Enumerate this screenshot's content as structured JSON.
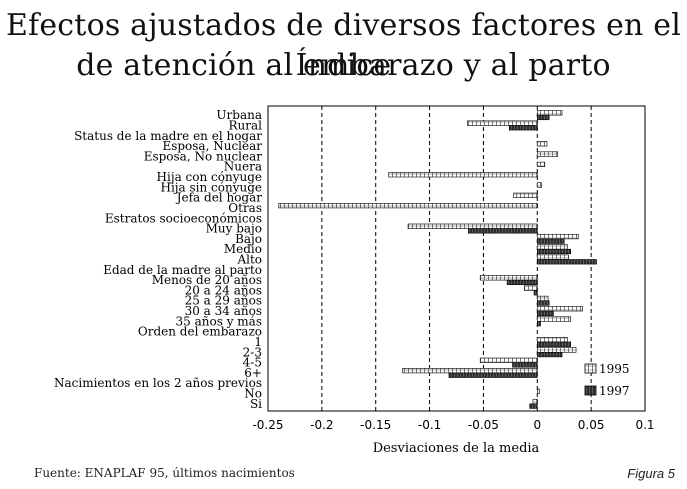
{
  "title_line1": "Efectos ajustados de diversos factores en el Índice",
  "title_line2": "de atención al embarazo y al parto",
  "source": "Fuente: ENAPLAF 95, últimos nacimientos",
  "figure_label": "Figura 5",
  "chart_data": {
    "type": "bar",
    "orientation": "horizontal",
    "xlabel": "Desviaciones de la media",
    "xlim": [
      -0.25,
      0.1
    ],
    "xticks": [
      "-0.25",
      "-0.2",
      "-0.15",
      "-0.1",
      "-0.05",
      "0",
      "0.05",
      "0.1"
    ],
    "grid": "vertical dashed",
    "legend_position": "lower-right",
    "categories": [
      "Urbana",
      "Rural",
      "Status de la madre en el hogar",
      "Esposa, Nuclear",
      "Esposa, No nuclear",
      "Nuera",
      "Hija con cónyuge",
      "Hija sin cónyuge",
      "Jefa del hogar",
      "Otras",
      "Estratos socioeconómicos",
      "Muy bajo",
      "Bajo",
      "Medio",
      "Alto",
      "Edad de la madre al parto",
      "Menos de 20 años",
      "20 a 24 años",
      "25 a 29 años",
      "30 a 34 años",
      "35 años y más",
      "Orden del embarazo",
      "1",
      "2-3",
      "4-5",
      "6+",
      "Nacimientos en los 2 años previos",
      "No",
      "Si"
    ],
    "series": [
      {
        "name": "1995",
        "color": "#d9d9d9",
        "pattern": "hatched",
        "values": [
          0.023,
          -0.065,
          null,
          0.009,
          0.019,
          0.007,
          -0.138,
          0.004,
          -0.022,
          -0.24,
          null,
          -0.12,
          0.038,
          0.028,
          0.029,
          null,
          -0.053,
          -0.012,
          0.01,
          0.042,
          0.031,
          null,
          0.028,
          0.036,
          -0.053,
          -0.125,
          null,
          0.002,
          -0.004
        ]
      },
      {
        "name": "1997",
        "color": "#333333",
        "pattern": "dark",
        "values": [
          0.011,
          -0.026,
          null,
          null,
          null,
          null,
          null,
          null,
          null,
          null,
          null,
          -0.064,
          0.025,
          0.031,
          0.055,
          null,
          -0.028,
          -0.003,
          0.011,
          0.015,
          0.003,
          null,
          0.031,
          0.023,
          -0.023,
          -0.082,
          null,
          null,
          -0.007
        ]
      }
    ]
  }
}
